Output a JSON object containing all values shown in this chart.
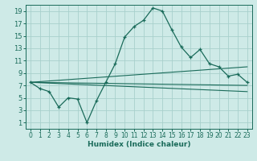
{
  "xlabel": "Humidex (Indice chaleur)",
  "bg_color": "#ceeae7",
  "grid_color": "#a8d0cc",
  "line_color": "#1a6b5a",
  "xlim": [
    -0.5,
    23.5
  ],
  "ylim": [
    0.0,
    20.0
  ],
  "xticks": [
    0,
    1,
    2,
    3,
    4,
    5,
    6,
    7,
    8,
    9,
    10,
    11,
    12,
    13,
    14,
    15,
    16,
    17,
    18,
    19,
    20,
    21,
    22,
    23
  ],
  "yticks": [
    1,
    3,
    5,
    7,
    9,
    11,
    13,
    15,
    17,
    19
  ],
  "main_series": {
    "x": [
      0,
      1,
      2,
      3,
      4,
      5,
      6,
      7,
      8,
      9,
      10,
      11,
      12,
      13,
      14,
      15,
      16,
      17,
      18,
      19,
      20,
      21,
      22,
      23
    ],
    "y": [
      7.5,
      6.5,
      6.0,
      3.5,
      5.0,
      4.8,
      1.0,
      4.5,
      7.5,
      10.5,
      14.8,
      16.5,
      17.5,
      19.5,
      19.0,
      16.0,
      13.2,
      11.5,
      12.8,
      10.5,
      10.0,
      8.5,
      8.8,
      7.5
    ]
  },
  "straight_lines": [
    {
      "x0": 0,
      "y0": 7.5,
      "x1": 23,
      "y1": 7.0
    },
    {
      "x0": 0,
      "y0": 7.5,
      "x1": 23,
      "y1": 10.0
    },
    {
      "x0": 0,
      "y0": 7.5,
      "x1": 23,
      "y1": 6.0
    }
  ]
}
